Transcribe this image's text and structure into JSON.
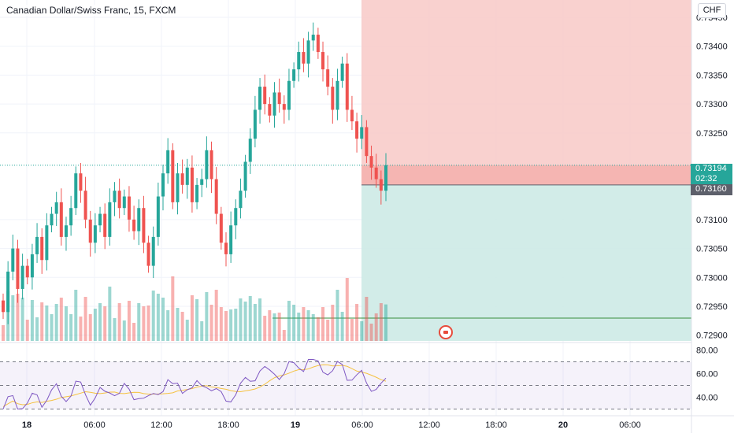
{
  "chart_title": "Canadian Dollar/Swiss Franc, 15, FXCM",
  "currency": "CHF",
  "price_axis": {
    "labels": [
      "0.73450",
      "0.73400",
      "0.73350",
      "0.73300",
      "0.73250",
      "0.73100",
      "0.73050",
      "0.73000",
      "0.72950",
      "0.72900"
    ],
    "range": [
      0.7289,
      0.7348
    ]
  },
  "current_price": {
    "value": "0.73194",
    "countdown": "02:32",
    "color": "#26a69a"
  },
  "position_price": {
    "value": "0.73160",
    "color": "#5d606b"
  },
  "rsi_axis": {
    "labels": [
      "80.00",
      "60.00",
      "40.00"
    ],
    "range": [
      25,
      85
    ]
  },
  "time_axis": [
    "18",
    "06:00",
    "12:00",
    "18:00",
    "19",
    "06:00",
    "12:00",
    "18:00",
    "20",
    "06:00"
  ],
  "colors": {
    "up": "#26a69a",
    "down": "#ef5350",
    "stop_zone": "#f8c9c7",
    "target_zone": "#cdeae6",
    "rsi_line": "#7e57c2",
    "rsi_ma": "#f5c242"
  },
  "chart_data": {
    "type": "candlestick",
    "symbol": "CADCHF",
    "interval": "15",
    "ylim": [
      0.7289,
      0.7348
    ],
    "closes": [
      0.7294,
      0.7301,
      0.7305,
      0.7298,
      0.7302,
      0.73,
      0.7304,
      0.7307,
      0.7303,
      0.7309,
      0.7311,
      0.7313,
      0.7307,
      0.7309,
      0.7312,
      0.7318,
      0.7315,
      0.731,
      0.7306,
      0.7309,
      0.7311,
      0.7307,
      0.7313,
      0.7315,
      0.7312,
      0.7314,
      0.731,
      0.7308,
      0.7312,
      0.7306,
      0.7302,
      0.7307,
      0.7314,
      0.7318,
      0.7322,
      0.7313,
      0.7318,
      0.7316,
      0.7319,
      0.7313,
      0.7316,
      0.7317,
      0.7322,
      0.7317,
      0.7311,
      0.7306,
      0.7304,
      0.7309,
      0.7312,
      0.7315,
      0.732,
      0.7324,
      0.7329,
      0.7333,
      0.733,
      0.7328,
      0.7332,
      0.733,
      0.7329,
      0.7334,
      0.7336,
      0.7339,
      0.7337,
      0.7341,
      0.7342,
      0.7339,
      0.7336,
      0.7333,
      0.7329,
      0.7334,
      0.7337,
      0.7329,
      0.7327,
      0.7324,
      0.7326,
      0.7321,
      0.7319,
      0.7317,
      0.7315,
      0.73194
    ]
  }
}
